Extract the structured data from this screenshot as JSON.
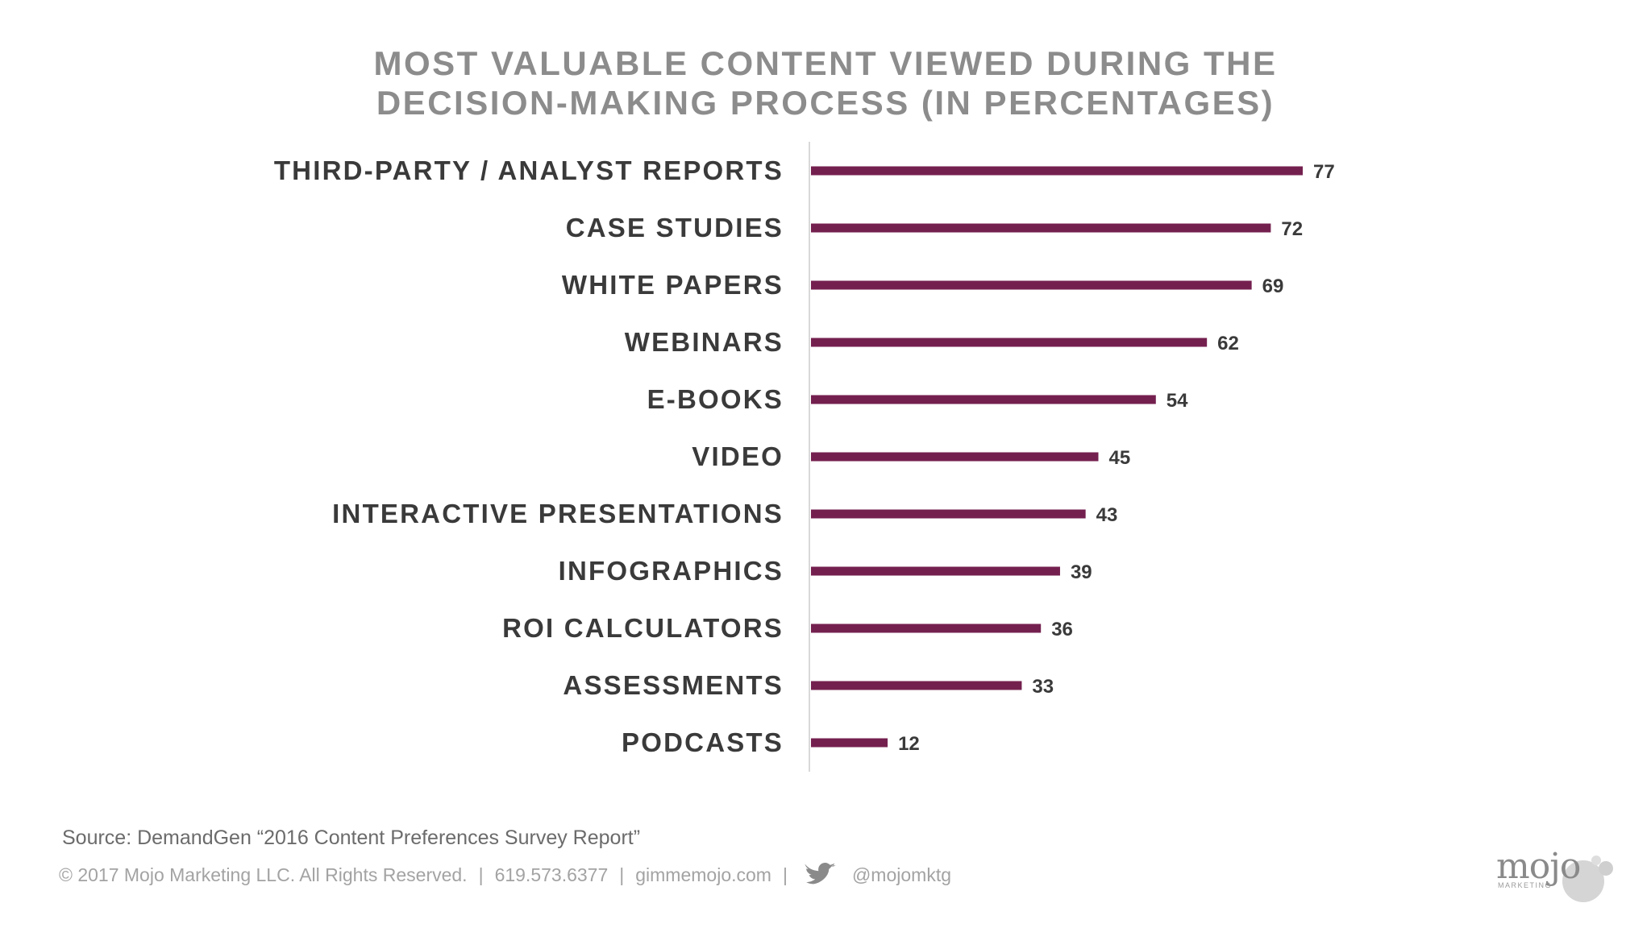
{
  "chart_data": {
    "type": "bar",
    "orientation": "horizontal",
    "title": "MOST VALUABLE CONTENT VIEWED DURING THE DECISION-MAKING PROCESS (IN PERCENTAGES)",
    "title_lines": [
      "MOST VALUABLE CONTENT VIEWED DURING THE",
      "DECISION-MAKING PROCESS (IN PERCENTAGES)"
    ],
    "categories": [
      "THIRD-PARTY / ANALYST REPORTS",
      "CASE STUDIES",
      "WHITE PAPERS",
      "WEBINARS",
      "E-BOOKS",
      "VIDEO",
      "INTERACTIVE PRESENTATIONS",
      "INFOGRAPHICS",
      "ROI CALCULATORS",
      "ASSESSMENTS",
      "PODCASTS"
    ],
    "values": [
      77,
      72,
      69,
      62,
      54,
      45,
      43,
      39,
      36,
      33,
      12
    ],
    "xlabel": "",
    "ylabel": "",
    "xlim": [
      0,
      77
    ],
    "grid": false,
    "legend": "none",
    "data_labels": true
  },
  "colors": {
    "bar": "#74204f",
    "title": "#8c8c8c",
    "category_label": "#3a3a3a",
    "value_label": "#3a3a3a",
    "axis_line": "#d9d9d9"
  },
  "source": "Source: DemandGen “2016 Content Preferences Survey Report”",
  "footer": {
    "copyright": "© 2017 Mojo Marketing LLC. All Rights Reserved.",
    "phone": "619.573.6377",
    "website": "gimmemojo.com",
    "twitter_icon": "twitter-bird-icon",
    "twitter_handle": "@mojomktg",
    "separator": "|"
  },
  "logo": {
    "word": "mojo",
    "tagline": "MARKETING"
  }
}
